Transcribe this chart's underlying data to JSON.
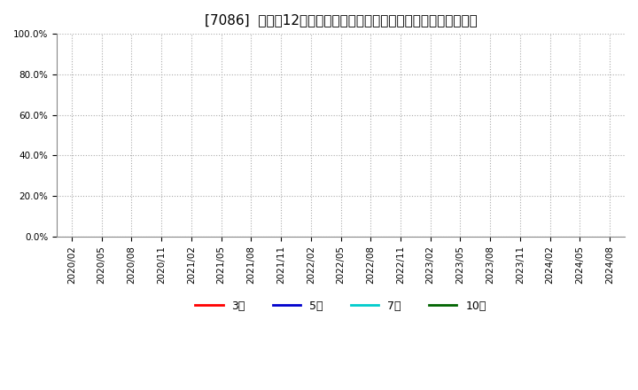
{
  "title": "[7086]  売上高12か月移動合計の対前年同期増減率の平均値の推移",
  "ylim": [
    0.0,
    1.0
  ],
  "yticks": [
    0.0,
    0.2,
    0.4,
    0.6,
    0.8,
    1.0
  ],
  "ytick_labels": [
    "0.0%",
    "20.0%",
    "40.0%",
    "60.0%",
    "80.0%",
    "100.0%"
  ],
  "xtick_labels": [
    "2020/02",
    "2020/05",
    "2020/08",
    "2020/11",
    "2021/02",
    "2021/05",
    "2021/08",
    "2021/11",
    "2022/02",
    "2022/05",
    "2022/08",
    "2022/11",
    "2023/02",
    "2023/05",
    "2023/08",
    "2023/11",
    "2024/02",
    "2024/05",
    "2024/08"
  ],
  "legend_entries": [
    {
      "label": "3年",
      "color": "#ff0000"
    },
    {
      "label": "5年",
      "color": "#0000cd"
    },
    {
      "label": "7年",
      "color": "#00cccc"
    },
    {
      "label": "10年",
      "color": "#006400"
    }
  ],
  "bg_color": "#ffffff",
  "grid_color": "#aaaaaa",
  "title_fontsize": 11,
  "tick_fontsize": 7.5,
  "legend_fontsize": 9
}
